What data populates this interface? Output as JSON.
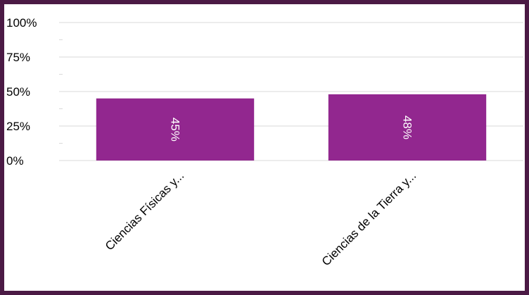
{
  "chart_data": {
    "type": "bar",
    "title": "",
    "xlabel": "",
    "ylabel": "",
    "categories": [
      "Ciencias Físicas y...",
      "Ciencias de la Tierra y..."
    ],
    "values": [
      45,
      48
    ],
    "data_labels": [
      "45%",
      "48%"
    ],
    "ylim": [
      0,
      100
    ],
    "yticks": [
      0,
      25,
      50,
      75,
      100
    ],
    "ytick_labels": [
      "0%",
      "25%",
      "50%",
      "75%",
      "100%"
    ],
    "grid": true,
    "legend": "none",
    "colors": {
      "bar": "#92278f",
      "frame": "#4b1a45",
      "grid": "#d9d9d9",
      "data_label": "#ffffff"
    }
  }
}
